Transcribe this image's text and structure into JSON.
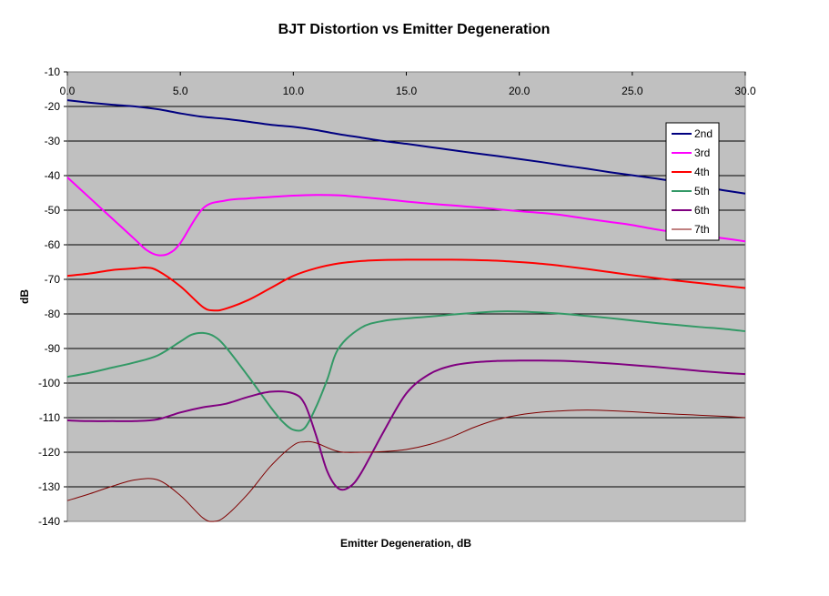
{
  "chart_data": {
    "type": "line",
    "title": "BJT Distortion vs Emitter Degeneration",
    "xlabel": "Emitter Degeneration, dB",
    "ylabel": "dB",
    "xlim": [
      0,
      30
    ],
    "ylim": [
      -140,
      -10
    ],
    "x_ticks": [
      "0.0",
      "5.0",
      "10.0",
      "15.0",
      "20.0",
      "25.0",
      "30.0"
    ],
    "y_ticks": [
      "-10",
      "-20",
      "-30",
      "-40",
      "-50",
      "-60",
      "-70",
      "-80",
      "-90",
      "-100",
      "-110",
      "-120",
      "-130",
      "-140"
    ],
    "x_tick_values": [
      0,
      5,
      10,
      15,
      20,
      25,
      30
    ],
    "y_tick_values": [
      -10,
      -20,
      -30,
      -40,
      -50,
      -60,
      -70,
      -80,
      -90,
      -100,
      -110,
      -120,
      -130,
      -140
    ],
    "grid": "horizontal",
    "plot_background": "#c0c0c0",
    "legend_position": "right",
    "series": [
      {
        "name": "2nd",
        "color": "#000080",
        "x": [
          0,
          1,
          2,
          3,
          4,
          5,
          6,
          7,
          8,
          9,
          10,
          11,
          12,
          13,
          14,
          15,
          16,
          17,
          18,
          19,
          20,
          21,
          22,
          23,
          24,
          25,
          26,
          27,
          28,
          29,
          30
        ],
        "y": [
          -18.2,
          -18.9,
          -19.5,
          -20,
          -20.8,
          -22,
          -23,
          -23.6,
          -24.4,
          -25.3,
          -25.9,
          -26.8,
          -28,
          -29,
          -30,
          -30.8,
          -31.7,
          -32.6,
          -33.5,
          -34.3,
          -35.2,
          -36.1,
          -37.1,
          -38,
          -39,
          -39.9,
          -40.8,
          -41.8,
          -43.1,
          -44.2,
          -45.2
        ]
      },
      {
        "name": "3rd",
        "color": "#ff00ff",
        "x": [
          0,
          1,
          2,
          3,
          3.5,
          4,
          4.5,
          5,
          6,
          7,
          8,
          9,
          10,
          11,
          12,
          13,
          14,
          15,
          16,
          17,
          18,
          19,
          20,
          21,
          22,
          23,
          24,
          25,
          26,
          27,
          28,
          29,
          30
        ],
        "y": [
          -40.5,
          -46.5,
          -52.5,
          -58.5,
          -61.5,
          -63,
          -62.5,
          -59.5,
          -49.5,
          -47.2,
          -46.6,
          -46.2,
          -45.8,
          -45.6,
          -45.7,
          -46.2,
          -46.8,
          -47.5,
          -48.1,
          -48.6,
          -49.1,
          -49.7,
          -50.3,
          -50.8,
          -51.5,
          -52.5,
          -53.4,
          -54.3,
          -55.5,
          -56.5,
          -57.2,
          -58.1,
          -59
        ]
      },
      {
        "name": "4th",
        "color": "#ff0000",
        "x": [
          0,
          1,
          2,
          3,
          3.5,
          4,
          5,
          6,
          6.5,
          7,
          8,
          9,
          10,
          11,
          12,
          13,
          14,
          15,
          16,
          17,
          18,
          19,
          20,
          21,
          22,
          23,
          24,
          25,
          26,
          27,
          28,
          29,
          30
        ],
        "y": [
          -69,
          -68.3,
          -67.3,
          -66.8,
          -66.6,
          -67.5,
          -72,
          -78,
          -79,
          -78.5,
          -76,
          -72.5,
          -69,
          -66.8,
          -65.4,
          -64.7,
          -64.4,
          -64.3,
          -64.3,
          -64.3,
          -64.4,
          -64.6,
          -65,
          -65.5,
          -66.2,
          -67,
          -67.9,
          -68.8,
          -69.6,
          -70.4,
          -71.1,
          -71.8,
          -72.5
        ]
      },
      {
        "name": "5th",
        "color": "#339966",
        "x": [
          0,
          1,
          2,
          3,
          4,
          5,
          5.5,
          6,
          6.5,
          7,
          8,
          9,
          9.5,
          10,
          10.5,
          11,
          11.5,
          12,
          13,
          14,
          15,
          16,
          17,
          18,
          19,
          20,
          21,
          22,
          23,
          24,
          25,
          26,
          27,
          28,
          29,
          30
        ],
        "y": [
          -98.2,
          -97,
          -95.5,
          -94,
          -92,
          -88,
          -86,
          -85.5,
          -86.5,
          -89.5,
          -98,
          -107,
          -111,
          -113.5,
          -113,
          -107,
          -99,
          -90,
          -84,
          -82,
          -81.3,
          -80.8,
          -80.2,
          -79.7,
          -79.3,
          -79.3,
          -79.6,
          -80,
          -80.6,
          -81.2,
          -81.9,
          -82.6,
          -83.2,
          -83.8,
          -84.3,
          -85
        ]
      },
      {
        "name": "6th",
        "color": "#800080",
        "x": [
          0,
          1,
          2,
          3,
          4,
          5,
          6,
          7,
          8,
          9,
          10,
          10.5,
          11,
          11.5,
          12,
          12.5,
          13,
          14,
          15,
          16,
          17,
          18,
          19,
          20,
          21,
          22,
          23,
          24,
          25,
          26,
          27,
          28,
          29,
          30
        ],
        "y": [
          -110.8,
          -111,
          -111,
          -111,
          -110.5,
          -108.5,
          -107,
          -106,
          -104,
          -102.5,
          -103,
          -106,
          -115,
          -125.5,
          -130.5,
          -130,
          -126,
          -114,
          -103,
          -97.5,
          -95,
          -94,
          -93.6,
          -93.5,
          -93.5,
          -93.6,
          -93.9,
          -94.3,
          -94.8,
          -95.3,
          -95.9,
          -96.5,
          -97,
          -97.4
        ]
      },
      {
        "name": "7th",
        "color": "#800000",
        "x": [
          0,
          1,
          2,
          3,
          4,
          5,
          6,
          6.5,
          7,
          8,
          9,
          10,
          10.5,
          11,
          12,
          13,
          14,
          15,
          16,
          17,
          18,
          19,
          20,
          21,
          22,
          23,
          24,
          25,
          26,
          27,
          28,
          29,
          30
        ],
        "y": [
          -134,
          -132,
          -129.8,
          -128,
          -128,
          -132.5,
          -139,
          -140,
          -138.5,
          -132,
          -124,
          -118,
          -117,
          -117.3,
          -119.8,
          -120,
          -119.8,
          -119.2,
          -117.8,
          -115.6,
          -112.8,
          -110.6,
          -109.2,
          -108.4,
          -108,
          -107.8,
          -108,
          -108.3,
          -108.7,
          -109,
          -109.3,
          -109.6,
          -110
        ]
      }
    ]
  }
}
